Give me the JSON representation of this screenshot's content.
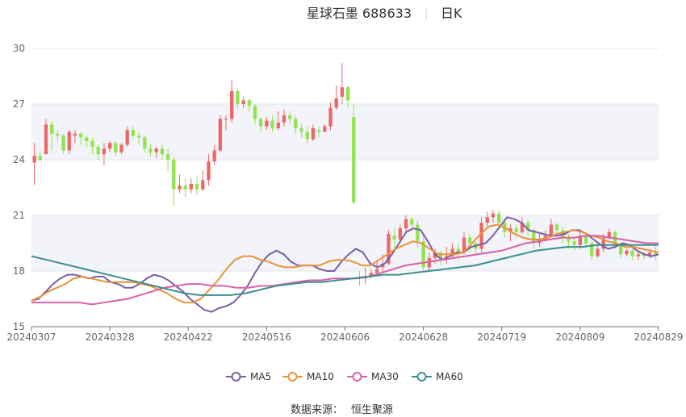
{
  "chart_data": {
    "type": "candlestick",
    "title": "星球石墨 688633",
    "period": "日K",
    "source_label": "数据来源：",
    "source_name": "恒生聚源",
    "ylim": [
      15,
      30
    ],
    "yticks": [
      15,
      18,
      21,
      24,
      27,
      30
    ],
    "xticks": [
      "20240307",
      "20240328",
      "20240422",
      "20240516",
      "20240606",
      "20240628",
      "20240719",
      "20240809",
      "20240829"
    ],
    "grid": true,
    "legend_position": "bottom",
    "colors": {
      "up": "#ee6666",
      "down": "#91e34f",
      "ma5": "#7b5ea7",
      "ma10": "#e8923a",
      "ma30": "#d960a7",
      "ma60": "#3b8e93"
    },
    "candles": [
      [
        23.85,
        24.2,
        24.9,
        22.65
      ],
      [
        24.2,
        24.0,
        24.5,
        23.9
      ],
      [
        24.3,
        25.9,
        26.2,
        24.5
      ],
      [
        25.9,
        25.4,
        26.1,
        24.5
      ],
      [
        25.4,
        25.3,
        25.6,
        24.9
      ],
      [
        25.3,
        24.5,
        25.4,
        24.3
      ],
      [
        24.5,
        25.5,
        25.6,
        24.3
      ],
      [
        25.3,
        25.4,
        25.6,
        24.9
      ],
      [
        25.4,
        25.2,
        25.5,
        24.8
      ],
      [
        25.2,
        25.0,
        25.3,
        24.7
      ],
      [
        25.0,
        24.7,
        25.2,
        24.3
      ],
      [
        24.7,
        24.3,
        24.8,
        24.0
      ],
      [
        24.3,
        24.6,
        24.9,
        23.7
      ],
      [
        24.6,
        24.9,
        25.0,
        24.4
      ],
      [
        24.9,
        24.4,
        25.0,
        24.2
      ],
      [
        24.4,
        24.8,
        24.9,
        24.3
      ],
      [
        24.8,
        25.6,
        25.8,
        24.7
      ],
      [
        25.6,
        25.3,
        25.8,
        25.1
      ],
      [
        25.3,
        25.2,
        25.5,
        24.8
      ],
      [
        25.2,
        24.6,
        25.3,
        24.4
      ],
      [
        24.6,
        24.4,
        24.8,
        24.2
      ],
      [
        24.4,
        24.6,
        24.7,
        24.1
      ],
      [
        24.6,
        24.3,
        24.8,
        24.0
      ],
      [
        24.3,
        24.0,
        24.6,
        23.4
      ],
      [
        24.0,
        22.4,
        24.2,
        21.5
      ],
      [
        22.4,
        22.6,
        23.2,
        22.2
      ],
      [
        22.6,
        22.4,
        23.0,
        22.0
      ],
      [
        22.4,
        22.7,
        23.0,
        22.2
      ],
      [
        22.7,
        22.4,
        23.1,
        22.1
      ],
      [
        22.4,
        22.9,
        23.4,
        22.3
      ],
      [
        22.9,
        23.9,
        24.3,
        22.6
      ],
      [
        23.9,
        24.5,
        24.8,
        23.7
      ],
      [
        24.5,
        26.2,
        26.4,
        24.4
      ],
      [
        26.2,
        26.2,
        26.4,
        25.6
      ],
      [
        26.2,
        27.7,
        28.3,
        26.0
      ],
      [
        27.7,
        27.0,
        27.9,
        26.7
      ],
      [
        27.0,
        27.2,
        27.4,
        26.8
      ],
      [
        27.2,
        26.9,
        27.3,
        26.6
      ],
      [
        26.9,
        26.2,
        27.0,
        25.9
      ],
      [
        26.2,
        25.8,
        26.3,
        25.5
      ],
      [
        25.8,
        26.1,
        26.3,
        25.6
      ],
      [
        26.1,
        25.7,
        26.4,
        25.5
      ],
      [
        25.7,
        26.0,
        26.6,
        25.6
      ],
      [
        26.0,
        26.4,
        26.7,
        25.8
      ],
      [
        26.4,
        26.2,
        26.6,
        25.9
      ],
      [
        26.2,
        25.7,
        26.4,
        25.4
      ],
      [
        25.7,
        25.5,
        25.9,
        25.2
      ],
      [
        25.5,
        25.1,
        25.8,
        24.8
      ],
      [
        25.1,
        25.7,
        25.9,
        25.0
      ],
      [
        25.6,
        25.5,
        25.8,
        25.2
      ],
      [
        25.5,
        25.8,
        25.9,
        25.5
      ],
      [
        25.8,
        26.8,
        27.1,
        25.6
      ],
      [
        26.8,
        27.3,
        28.0,
        26.7
      ],
      [
        27.4,
        27.9,
        29.2,
        27.0
      ],
      [
        27.9,
        27.2,
        28.0,
        26.8
      ],
      [
        26.3,
        21.7,
        27.0,
        21.6
      ],
      [
        17.7,
        17.6,
        18.0,
        17.2
      ],
      [
        17.6,
        17.7,
        18.2,
        17.3
      ],
      [
        17.7,
        17.9,
        18.1,
        17.6
      ],
      [
        17.9,
        18.1,
        18.6,
        17.8
      ],
      [
        18.2,
        18.4,
        18.9,
        17.9
      ],
      [
        18.4,
        20.0,
        20.2,
        18.3
      ],
      [
        19.9,
        19.7,
        20.3,
        19.1
      ],
      [
        19.7,
        20.3,
        20.5,
        19.5
      ],
      [
        20.3,
        20.8,
        21.0,
        20.1
      ],
      [
        20.8,
        20.5,
        20.9,
        20.2
      ],
      [
        20.5,
        19.6,
        20.7,
        19.2
      ],
      [
        19.6,
        18.2,
        19.9,
        18.0
      ],
      [
        18.2,
        18.7,
        19.0,
        18.0
      ],
      [
        18.7,
        19.0,
        19.2,
        18.4
      ],
      [
        19.0,
        18.6,
        19.1,
        18.3
      ],
      [
        18.6,
        18.8,
        19.3,
        18.4
      ],
      [
        18.8,
        19.2,
        19.5,
        18.7
      ],
      [
        19.2,
        19.0,
        19.5,
        18.6
      ],
      [
        19.0,
        19.8,
        20.1,
        18.9
      ],
      [
        19.8,
        19.5,
        20.0,
        19.0
      ],
      [
        19.5,
        19.2,
        19.6,
        18.8
      ],
      [
        19.2,
        20.6,
        20.9,
        19.0
      ],
      [
        20.6,
        20.9,
        21.2,
        20.4
      ],
      [
        20.9,
        21.1,
        21.3,
        20.6
      ],
      [
        21.1,
        20.6,
        21.3,
        20.3
      ],
      [
        20.6,
        20.1,
        20.8,
        19.8
      ],
      [
        20.1,
        20.3,
        20.5,
        19.6
      ],
      [
        20.3,
        20.1,
        20.5,
        19.8
      ],
      [
        20.1,
        20.6,
        20.9,
        20.0
      ],
      [
        20.6,
        20.2,
        20.8,
        19.9
      ],
      [
        20.2,
        19.5,
        20.3,
        19.2
      ],
      [
        19.5,
        19.7,
        20.0,
        19.3
      ],
      [
        19.7,
        19.9,
        20.2,
        19.6
      ],
      [
        19.9,
        20.5,
        20.8,
        19.8
      ],
      [
        20.5,
        20.2,
        20.6,
        19.9
      ],
      [
        20.2,
        19.8,
        20.4,
        19.5
      ],
      [
        19.8,
        19.6,
        20.0,
        19.2
      ],
      [
        19.6,
        19.4,
        19.8,
        19.1
      ],
      [
        19.4,
        19.9,
        20.1,
        19.2
      ],
      [
        19.9,
        19.5,
        20.0,
        19.2
      ],
      [
        19.5,
        18.8,
        19.6,
        18.6
      ],
      [
        18.8,
        19.2,
        19.4,
        18.7
      ],
      [
        19.2,
        19.8,
        20.0,
        19.0
      ],
      [
        19.8,
        20.1,
        20.3,
        19.7
      ],
      [
        20.1,
        19.4,
        20.2,
        19.2
      ],
      [
        19.4,
        18.9,
        19.5,
        18.7
      ],
      [
        18.9,
        19.1,
        19.2,
        18.8
      ],
      [
        19.1,
        18.8,
        19.2,
        18.6
      ],
      [
        18.8,
        18.9,
        19.1,
        18.6
      ],
      [
        18.9,
        18.8,
        19.1,
        18.6
      ],
      [
        18.8,
        19.0,
        19.2,
        18.7
      ],
      [
        19.0,
        18.8,
        19.3,
        18.6
      ]
    ],
    "series": [
      {
        "name": "MA5",
        "values": [
          16.4,
          16.5,
          16.9,
          17.3,
          17.6,
          17.8,
          17.8,
          17.7,
          17.6,
          17.7,
          17.7,
          17.4,
          17.3,
          17.1,
          17.1,
          17.3,
          17.6,
          17.8,
          17.7,
          17.5,
          17.2,
          16.9,
          16.5,
          16.2,
          15.9,
          15.8,
          16.0,
          16.1,
          16.3,
          16.7,
          17.2,
          17.9,
          18.5,
          18.9,
          19.1,
          18.9,
          18.5,
          18.3,
          18.3,
          18.3,
          18.1,
          18.0,
          18.0,
          18.5,
          18.9,
          19.2,
          19.0,
          18.4,
          18.2,
          18.4,
          18.9,
          19.5,
          20.1,
          20.3,
          20.2,
          19.6,
          18.9,
          18.6,
          18.8,
          19.0,
          19.0,
          19.3,
          19.4,
          19.5,
          19.9,
          20.4,
          20.9,
          20.8,
          20.6,
          20.2,
          20.1,
          20.0,
          19.9,
          19.9,
          20.0,
          20.2,
          20.2,
          20.0,
          19.7,
          19.4,
          19.2,
          19.3,
          19.5,
          19.4,
          19.1,
          18.9,
          18.8,
          18.9
        ]
      },
      {
        "name": "MA10",
        "values": [
          16.4,
          16.6,
          16.9,
          17.1,
          17.3,
          17.6,
          17.7,
          17.6,
          17.5,
          17.4,
          17.4,
          17.4,
          17.4,
          17.3,
          17.2,
          17.0,
          16.8,
          16.5,
          16.3,
          16.3,
          16.5,
          17.0,
          17.5,
          18.1,
          18.6,
          18.8,
          18.8,
          18.6,
          18.5,
          18.3,
          18.2,
          18.2,
          18.3,
          18.3,
          18.3,
          18.5,
          18.6,
          18.6,
          18.5,
          18.3,
          18.3,
          18.6,
          18.9,
          19.2,
          19.4,
          19.6,
          19.5,
          19.2,
          18.9,
          18.9,
          18.9,
          19.0,
          19.5,
          20.0,
          20.4,
          20.5,
          20.3,
          20.0,
          19.8,
          19.7,
          19.7,
          19.8,
          20.0,
          20.1,
          20.2,
          20.1,
          19.9,
          19.8,
          19.6,
          19.5,
          19.3,
          19.3,
          19.2,
          19.1,
          19.0
        ]
      },
      {
        "name": "MA30",
        "values": [
          16.3,
          16.3,
          16.3,
          16.3,
          16.3,
          16.2,
          16.3,
          16.4,
          16.5,
          16.7,
          16.9,
          17.1,
          17.2,
          17.3,
          17.3,
          17.2,
          17.2,
          17.1,
          17.1,
          17.2,
          17.2,
          17.3,
          17.4,
          17.5,
          17.5,
          17.6,
          17.6,
          17.6,
          17.7,
          17.9,
          18.1,
          18.3,
          18.4,
          18.5,
          18.6,
          18.7,
          18.8,
          18.9,
          19.0,
          19.1,
          19.3,
          19.5,
          19.6,
          19.7,
          19.8,
          19.8,
          19.9,
          19.9,
          19.8,
          19.7,
          19.6,
          19.5,
          19.5
        ]
      },
      {
        "name": "MA60",
        "values": [
          18.8,
          18.6,
          18.4,
          18.2,
          18.0,
          17.8,
          17.6,
          17.4,
          17.2,
          17.0,
          16.8,
          16.7,
          16.7,
          16.7,
          16.8,
          17.0,
          17.2,
          17.3,
          17.4,
          17.4,
          17.5,
          17.6,
          17.7,
          17.8,
          17.8,
          17.9,
          18.0,
          18.1,
          18.2,
          18.3,
          18.5,
          18.7,
          18.9,
          19.1,
          19.2,
          19.3,
          19.3,
          19.4,
          19.4,
          19.4,
          19.4,
          19.4
        ]
      }
    ]
  }
}
